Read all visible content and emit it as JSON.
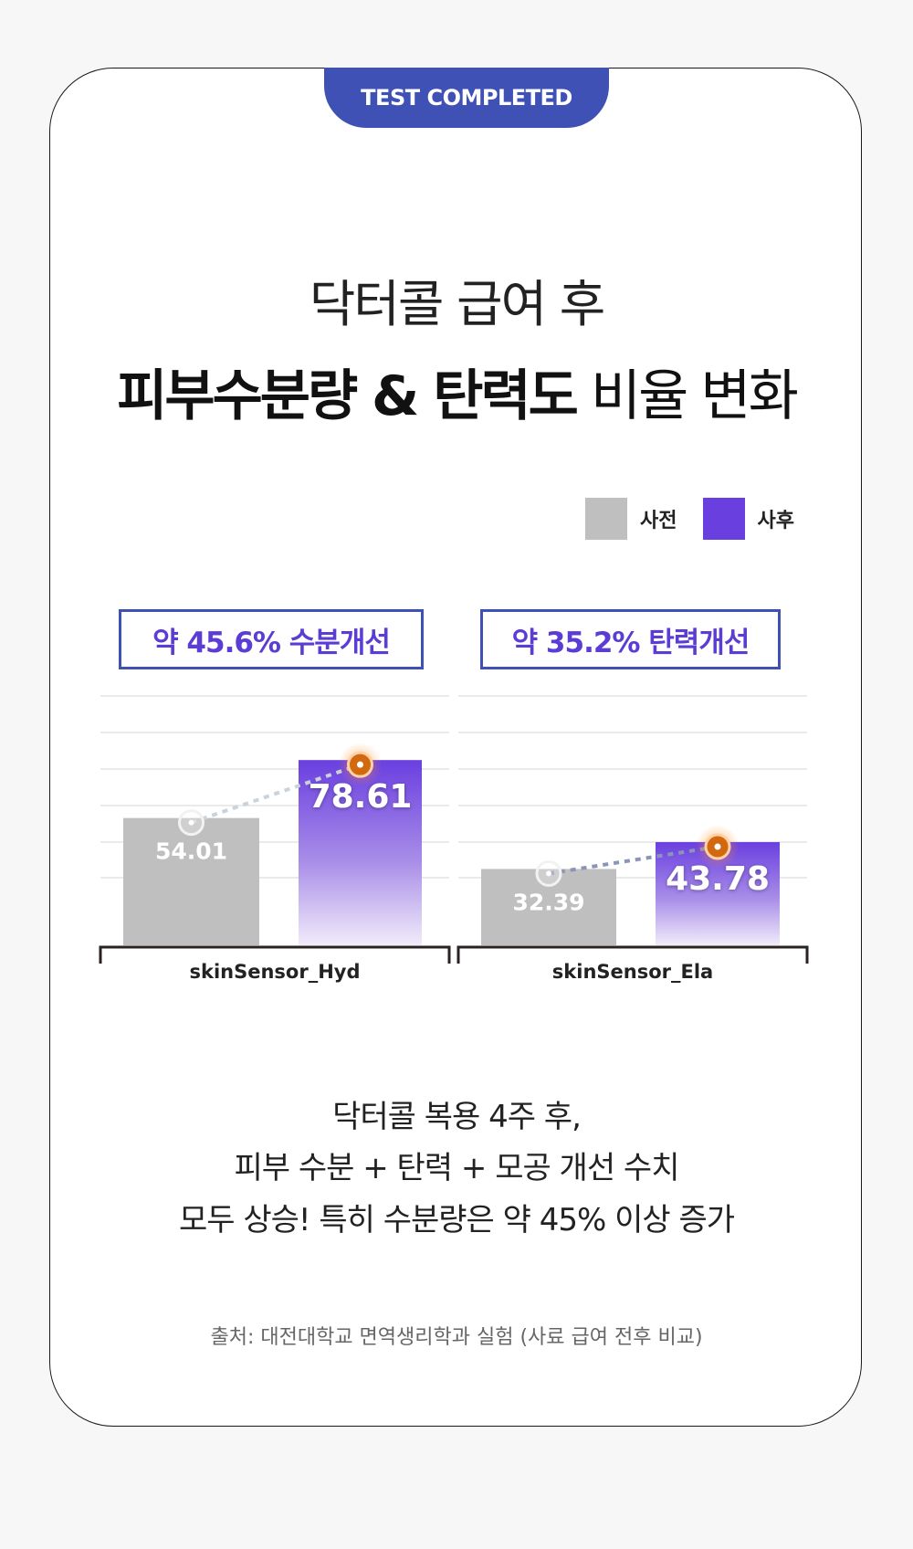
{
  "badge": "TEST COMPLETED",
  "title": {
    "line1": "닥터콜 급여 후",
    "line2_bold": "피부수분량 & 탄력도",
    "line2_light": " 비율 변화"
  },
  "legend": [
    {
      "label": "사전",
      "color": "#bfbfbf"
    },
    {
      "label": "사후",
      "color": "#6a3fe0"
    }
  ],
  "callouts": [
    "약 45.6% 수분개선",
    "약 35.2% 탄력개선"
  ],
  "chart_data": {
    "type": "bar",
    "categories": [
      "skinSensor_Hyd",
      "skinSensor_Ela"
    ],
    "series": [
      {
        "name": "사전",
        "values": [
          54.01,
          32.39
        ],
        "color": "#bfbfbf"
      },
      {
        "name": "사후",
        "values": [
          78.61,
          43.78
        ],
        "color": "#6a3fe0"
      }
    ],
    "data_labels": [
      [
        "54.01",
        "78.61"
      ],
      [
        "32.39",
        "43.78"
      ]
    ],
    "grid": true,
    "legend_position": "top-right"
  },
  "caption": [
    "닥터콜 복용 4주 후,",
    "피부 수분 + 탄력 + 모공 개선 수치",
    "모두 상승! 특히 수분량은 약 45% 이상 증가"
  ],
  "source": "출처: 대전대학교 면역생리학과 실험 (사료 급여 전후 비교)"
}
